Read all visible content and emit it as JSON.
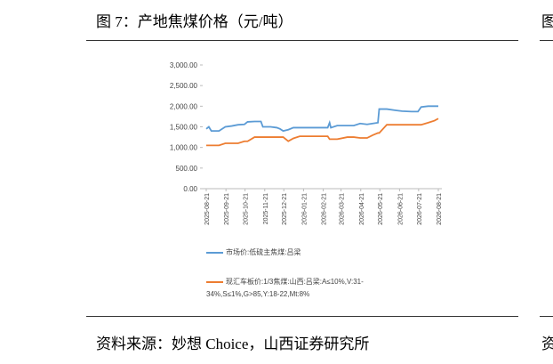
{
  "header": {
    "title": "图 7：产地焦煤价格（元/吨）"
  },
  "footer": {
    "source": "资料来源：妙想 Choice，山西证券研究所"
  },
  "right_fragment": {
    "title": "图",
    "source": "资"
  },
  "chart_data": {
    "type": "line",
    "x": [
      "2025-08-21",
      "2025-08-25",
      "2025-08-29",
      "2025-09-10",
      "2025-09-20",
      "2025-09-30",
      "2025-10-10",
      "2025-10-20",
      "2025-10-25",
      "2025-11-05",
      "2025-11-15",
      "2025-11-18",
      "2025-11-30",
      "2025-12-10",
      "2025-12-15",
      "2025-12-20",
      "2025-12-28",
      "2026-01-05",
      "2026-01-15",
      "2026-01-31",
      "2026-02-15",
      "2026-02-28",
      "2026-03-03",
      "2026-03-05",
      "2026-03-15",
      "2026-03-31",
      "2026-04-10",
      "2026-04-20",
      "2026-05-01",
      "2026-05-10",
      "2026-05-18",
      "2026-05-20",
      "2026-06-01",
      "2026-06-15",
      "2026-06-25",
      "2026-07-10",
      "2026-07-20",
      "2026-07-25",
      "2026-08-05",
      "2026-08-15",
      "2026-08-21"
    ],
    "series": [
      {
        "name": "市场价:低硫主焦煤:吕梁",
        "color": "#5b9bd5",
        "values": [
          1450,
          1500,
          1400,
          1400,
          1500,
          1520,
          1550,
          1560,
          1620,
          1630,
          1630,
          1500,
          1500,
          1480,
          1450,
          1400,
          1430,
          1480,
          1480,
          1480,
          1480,
          1480,
          1600,
          1480,
          1530,
          1530,
          1530,
          1580,
          1560,
          1580,
          1600,
          1930,
          1930,
          1900,
          1880,
          1870,
          1870,
          1980,
          2000,
          2000,
          2000
        ]
      },
      {
        "name": "现汇车板价:1/3焦煤:山西:吕梁:A≤10%,V:31-34%,S≤1%,G>85,Y:18-22,Mt:8%",
        "color": "#ed7d31",
        "values": [
          1050,
          1050,
          1050,
          1050,
          1100,
          1100,
          1100,
          1150,
          1150,
          1250,
          1250,
          1250,
          1250,
          1250,
          1250,
          1250,
          1150,
          1220,
          1270,
          1270,
          1270,
          1270,
          1200,
          1200,
          1200,
          1250,
          1250,
          1230,
          1230,
          1300,
          1350,
          1350,
          1550,
          1550,
          1550,
          1550,
          1550,
          1550,
          1600,
          1650,
          1700
        ]
      }
    ],
    "xlim": [
      "2025-08-21",
      "2026-08-21"
    ],
    "xticks": [
      "2025-08-21",
      "2025-09-21",
      "2025-10-21",
      "2025-11-21",
      "2025-12-21",
      "2026-01-21",
      "2026-02-21",
      "2026-03-21",
      "2026-04-21",
      "2026-05-21",
      "2026-06-21",
      "2026-07-21",
      "2026-08-21"
    ],
    "ylim": [
      0,
      3000
    ],
    "yticks": [
      {
        "value": 0,
        "label": "0.00"
      },
      {
        "value": 500,
        "label": "500.00"
      },
      {
        "value": 1000,
        "label": "1,000.00"
      },
      {
        "value": 1500,
        "label": "1,500.00"
      },
      {
        "value": 2000,
        "label": "2,000.00"
      },
      {
        "value": 2500,
        "label": "2,500.00"
      },
      {
        "value": 3000,
        "label": "3,000.00"
      }
    ]
  }
}
